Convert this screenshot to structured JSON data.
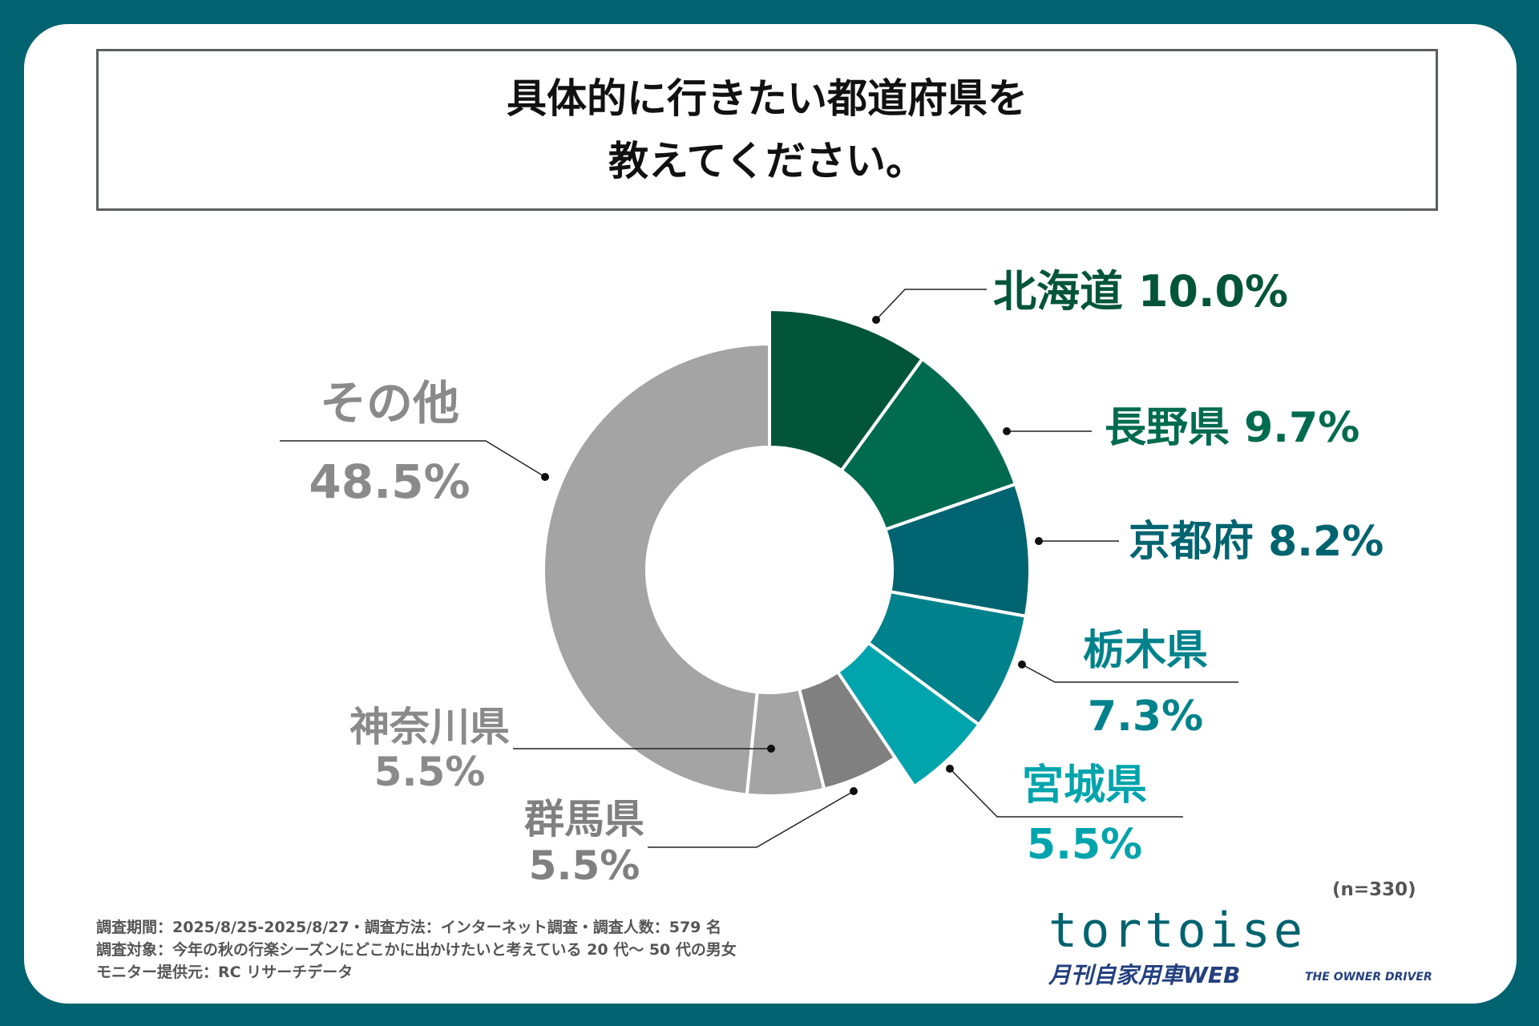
{
  "title": {
    "line1": "具体的に行きたい都道府県を",
    "line2": "教えてください。"
  },
  "chart_data": {
    "type": "pie",
    "variant": "donut",
    "categories": [
      "北海道",
      "長野県",
      "京都府",
      "栃木県",
      "宮城県",
      "群馬県",
      "神奈川県",
      "その他"
    ],
    "values": [
      10.0,
      9.7,
      8.2,
      7.3,
      5.5,
      5.5,
      5.5,
      48.5
    ],
    "value_labels": [
      "10.0%",
      "9.7%",
      "8.2%",
      "7.3%",
      "5.5%",
      "5.5%",
      "5.5%",
      "48.5%"
    ],
    "colors": [
      "#03553a",
      "#006b4f",
      "#006470",
      "#00828c",
      "#00a4ac",
      "#808080",
      "#a4a4a4",
      "#a4a4a4"
    ],
    "highlighted": [
      true,
      true,
      true,
      true,
      true,
      false,
      false,
      false
    ],
    "n_label": "(n=330)"
  },
  "footnotes": [
    "調査期間：2025/8/25-2025/8/27・調査方法：インターネット調査・調査人数：579 名",
    "調査対象：今年の秋の行楽シーズンにどこかに出かけたいと考えている 20 代〜 50 代の男女",
    "モニター提供元：RC リサーチデータ"
  ],
  "logo": {
    "brand": "tortoise",
    "partner": "月刊自家用車WEB",
    "partner_sub": "THE OWNER DRIVER"
  },
  "frame_color": "#00636f"
}
